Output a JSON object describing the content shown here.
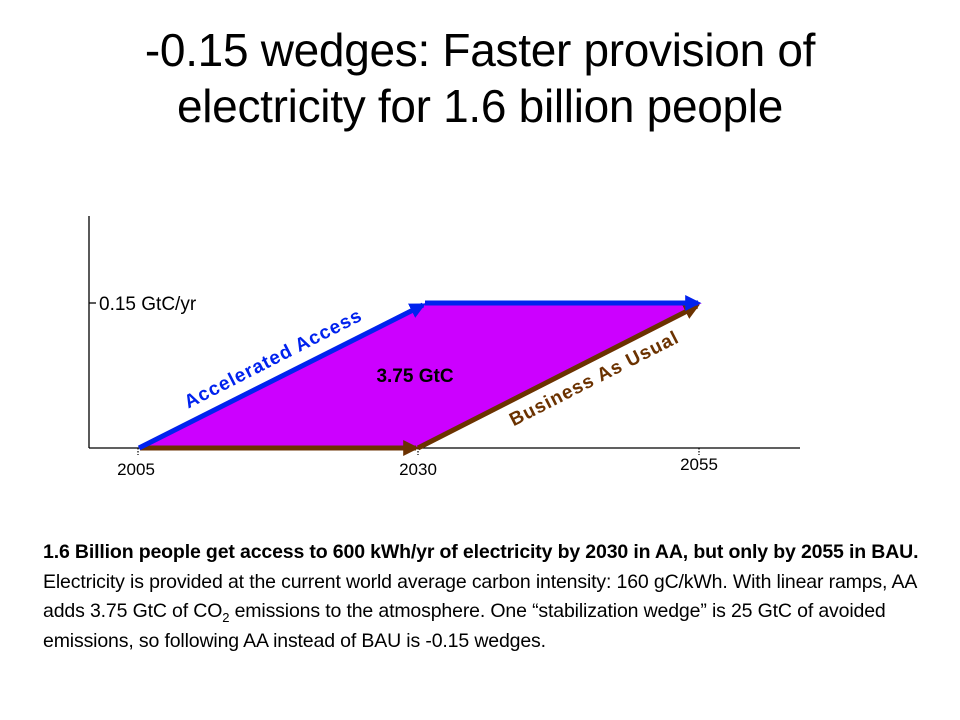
{
  "title": {
    "line1": "-0.15 wedges: Faster provision of",
    "line2": "electricity for 1.6 billion people"
  },
  "diagram": {
    "y_label": "0.15 GtC/yr",
    "area_label": "3.75 GtC",
    "aa_label": "Accelerated Access",
    "bau_label": "Business As Usual",
    "x_ticks": [
      "2005",
      "2030",
      "2055"
    ]
  },
  "caption": {
    "bold": "1.6 Billion people get access to 600 kWh/yr of electricity by 2030 in AA, but only by 2055 in BAU.",
    "text1": " Electricity is provided at the current world average carbon intensity: 160 gC/kWh. With linear ramps, AA adds 3.75 GtC of CO",
    "sub": "2",
    "text2": " emissions to the atmosphere. One “stabilization wedge” is 25 GtC of avoided emissions, so following AA instead of BAU is -0.15 wedges."
  },
  "colors": {
    "area": "#cc00ff",
    "accelerated_access": "#0022ee",
    "business_as_usual": "#6b3200",
    "axis": "#000000"
  }
}
